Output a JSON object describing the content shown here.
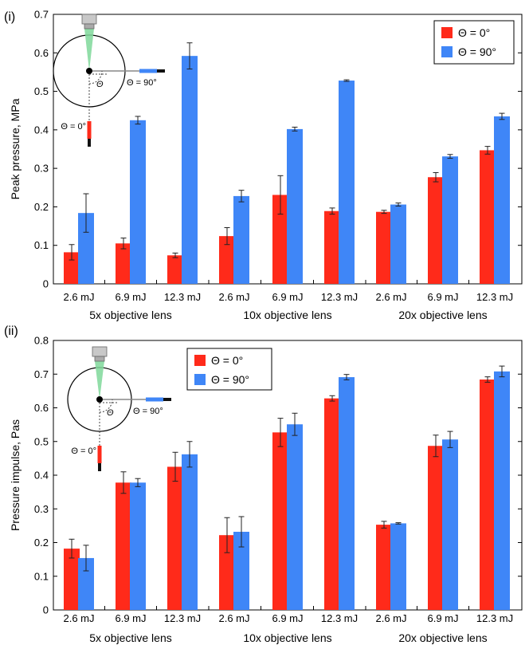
{
  "chart_data": [
    {
      "type": "bar",
      "panel_label": "(i)",
      "ylabel": "Peak pressure, MPa",
      "ylim": [
        0,
        0.7
      ],
      "yticks": [
        0,
        0.1,
        0.2,
        0.3,
        0.4,
        0.5,
        0.6,
        0.7
      ],
      "ytick_labels": [
        "0",
        "0.1",
        "0.2",
        "0.3",
        "0.4",
        "0.5",
        "0.6",
        "0.7"
      ],
      "categories": [
        "2.6 mJ",
        "6.9 mJ",
        "12.3 mJ",
        "2.6 mJ",
        "6.9 mJ",
        "12.3 mJ",
        "2.6 mJ",
        "6.9 mJ",
        "12.3 mJ"
      ],
      "groups": [
        "5x objective lens",
        "10x objective lens",
        "20x objective lens"
      ],
      "legend_position": "top-right",
      "series": [
        {
          "name": "Θ = 0°",
          "color": "#ff2a1a",
          "values": [
            0.082,
            0.105,
            0.074,
            0.124,
            0.231,
            0.189,
            0.187,
            0.277,
            0.347
          ],
          "errors": [
            0.02,
            0.014,
            0.006,
            0.022,
            0.05,
            0.008,
            0.004,
            0.012,
            0.01
          ]
        },
        {
          "name": "Θ = 90°",
          "color": "#3f86f7",
          "values": [
            0.184,
            0.425,
            0.592,
            0.228,
            0.402,
            0.528,
            0.206,
            0.331,
            0.435
          ],
          "errors": [
            0.05,
            0.01,
            0.034,
            0.015,
            0.005,
            0.002,
            0.004,
            0.005,
            0.008
          ]
        }
      ],
      "inset": {
        "angle_label": "Θ",
        "label_90": "Θ = 90°",
        "label_0": "Θ = 0°"
      }
    },
    {
      "type": "bar",
      "panel_label": "(ii)",
      "ylabel": "Pressure impulse, Pas",
      "ylim": [
        0,
        0.8
      ],
      "yticks": [
        0,
        0.1,
        0.2,
        0.3,
        0.4,
        0.5,
        0.6,
        0.7,
        0.8
      ],
      "ytick_labels": [
        "0",
        "0.1",
        "0.2",
        "0.3",
        "0.4",
        "0.5",
        "0.6",
        "0.7",
        "0.8"
      ],
      "categories": [
        "2.6 mJ",
        "6.9 mJ",
        "12.3 mJ",
        "2.6 mJ",
        "6.9 mJ",
        "12.3 mJ",
        "2.6 mJ",
        "6.9 mJ",
        "12.3 mJ"
      ],
      "groups": [
        "5x objective lens",
        "10x objective lens",
        "20x objective lens"
      ],
      "legend_position": "top-center",
      "series": [
        {
          "name": "Θ = 0°",
          "color": "#ff2a1a",
          "values": [
            0.182,
            0.378,
            0.425,
            0.222,
            0.527,
            0.628,
            0.253,
            0.487,
            0.684
          ],
          "errors": [
            0.028,
            0.032,
            0.043,
            0.052,
            0.042,
            0.008,
            0.01,
            0.032,
            0.008
          ]
        },
        {
          "name": "Θ = 90°",
          "color": "#3f86f7",
          "values": [
            0.154,
            0.378,
            0.462,
            0.232,
            0.551,
            0.691,
            0.257,
            0.506,
            0.708
          ],
          "errors": [
            0.038,
            0.012,
            0.038,
            0.045,
            0.033,
            0.008,
            0.002,
            0.024,
            0.016
          ]
        }
      ],
      "inset": {
        "angle_label": "Θ",
        "label_90": "Θ = 90°",
        "label_0": "Θ = 0°"
      }
    }
  ]
}
